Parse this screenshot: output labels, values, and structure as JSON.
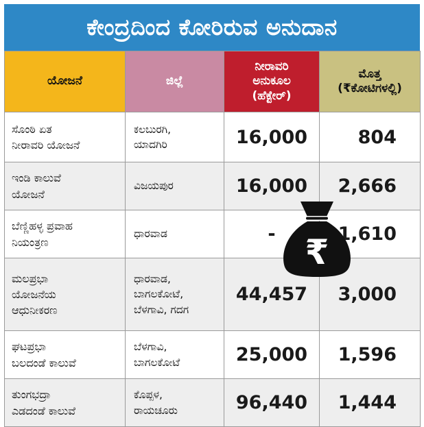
{
  "title": "ಕೇಂದ್ರದಿಂದ ಕೋರಿರುವ ಅನುದಾನ",
  "headers": {
    "scheme": "ಯೋಜನೆ",
    "district": "ಜಿಲ್ಲೆ",
    "irrigation_lines": [
      "ನೀರಾವರಿ",
      "ಅನುಕೂಲ",
      "(ಹೆಕ್ಟೇರ್)"
    ],
    "total_lines": [
      "ಮೊತ್ತ",
      "(₹ಕೋಟಿಗಳಲ್ಲಿ)"
    ]
  },
  "rows": [
    {
      "scheme": [
        "ಸೊಂಠಿ ಏತ",
        "ನೀರಾವರಿ ಯೋಜನೆ"
      ],
      "district": [
        "ಕಲಬುರಗಿ,",
        "ಯಾದಗಿರಿ"
      ],
      "irrigation": "16,000",
      "amount": "804"
    },
    {
      "scheme": [
        "ಇಂಡಿ ಕಾಲುವೆ",
        "ಯೋಜನೆ"
      ],
      "district": [
        "ವಿಜಯಪುರ"
      ],
      "irrigation": "16,000",
      "amount": "2,666"
    },
    {
      "scheme": [
        "ಬೆಣ್ಣಿಹಳ್ಳ ಪ್ರವಾಹ",
        "ನಿಯಂತ್ರಣ"
      ],
      "district": [
        "ಧಾರವಾಡ"
      ],
      "irrigation": "-",
      "amount": "1,610"
    },
    {
      "scheme": [
        "ಮಲಪ್ರಭಾ",
        "ಯೋಜನೆಯ",
        "ಆಧುನೀಕರಣ"
      ],
      "district": [
        "ಧಾರವಾಡ,",
        "ಬಾಗಲಕೋಟೆ,",
        "ಬೆಳಗಾವಿ, ಗದಗ"
      ],
      "irrigation": "44,457",
      "amount": "3,000"
    },
    {
      "scheme": [
        "ಘಟಪ್ರಭಾ",
        "ಬಲದಂಡೆ ಕಾಲುವೆ"
      ],
      "district": [
        "ಬೆಳಗಾವಿ,",
        "ಬಾಗಲಕೋಟೆ"
      ],
      "irrigation": "25,000",
      "amount": "1,596"
    },
    {
      "scheme": [
        "ತುಂಗಭದ್ರಾ",
        "ಎಡದಂಡೆ ಕಾಲುವೆ"
      ],
      "district": [
        "ಕೊಪ್ಪಳ,",
        "ರಾಯಚೂರು"
      ],
      "irrigation": "96,440",
      "amount": "1,444"
    }
  ],
  "illustration": {
    "icon": "rupee-money-bag-icon",
    "symbol": "₹"
  },
  "colors": {
    "title_bg": "#2e88c6",
    "scheme_header": "#f4b61b",
    "district_header": "#c98aa3",
    "irrigation_header": "#bf1e2d",
    "amount_header": "#c9c181"
  }
}
